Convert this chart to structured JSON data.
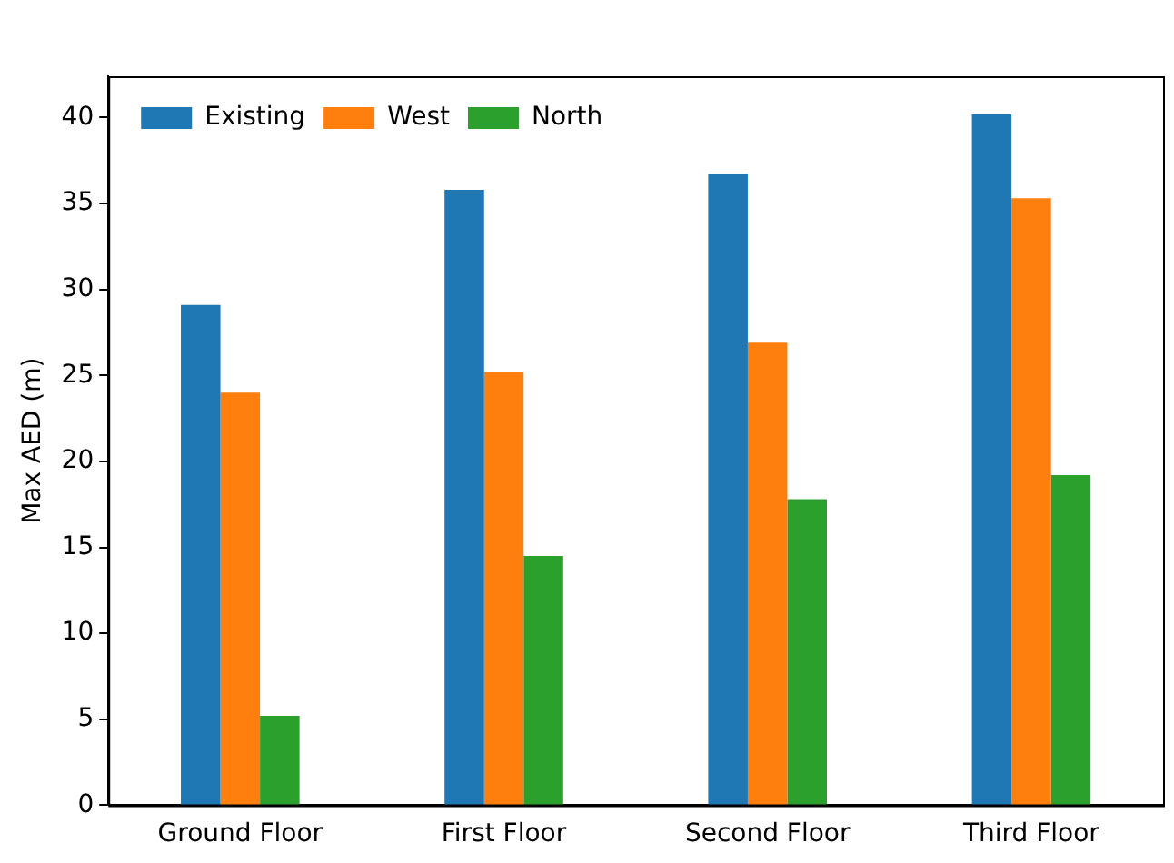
{
  "chart_data": {
    "type": "bar",
    "ylabel": "Max AED (m)",
    "categories": [
      "Ground Floor",
      "First Floor",
      "Second Floor",
      "Third Floor"
    ],
    "series": [
      {
        "name": "Existing",
        "color": "#1f77b4",
        "values": [
          29.1,
          35.8,
          36.7,
          40.2
        ]
      },
      {
        "name": "West",
        "color": "#ff7f0e",
        "values": [
          24.0,
          25.2,
          26.9,
          35.3
        ]
      },
      {
        "name": "North",
        "color": "#2ca02c",
        "values": [
          5.2,
          14.5,
          17.8,
          19.2
        ]
      }
    ],
    "ylim": [
      0,
      42.4
    ],
    "yticks": [
      0,
      5,
      10,
      15,
      20,
      25,
      30,
      35,
      40
    ],
    "grid": false,
    "legend": "top left"
  }
}
